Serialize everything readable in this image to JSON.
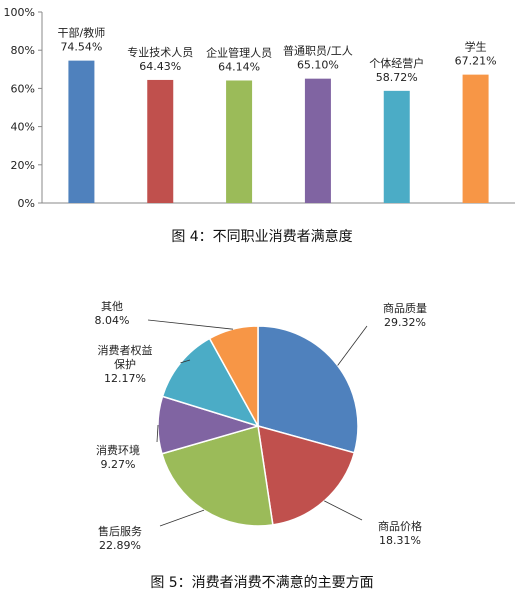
{
  "chart_data": [
    {
      "type": "bar",
      "categories": [
        "干部/教师",
        "专业技术人员",
        "企业管理人员",
        "普通职员/工人",
        "个体经营户",
        "学生"
      ],
      "values": [
        74.54,
        64.43,
        64.14,
        65.1,
        58.72,
        67.21
      ],
      "value_labels": [
        "74.54%",
        "64.43%",
        "64.14%",
        "65.10%",
        "58.72%",
        "67.21%"
      ],
      "colors": [
        "#4f81bd",
        "#c0504d",
        "#9bbb59",
        "#8064a2",
        "#4bacc6",
        "#f79646"
      ],
      "ylim": [
        0,
        100
      ],
      "yticks": [
        0,
        20,
        40,
        60,
        80,
        100
      ],
      "ytick_labels": [
        "0%",
        "20%",
        "40%",
        "60%",
        "80%",
        "100%"
      ],
      "caption": "图 4：不同职业消费者满意度"
    },
    {
      "type": "pie",
      "labels": [
        "商品质量",
        "商品价格",
        "售后服务",
        "消费环境",
        "消费者权益保护",
        "其他"
      ],
      "display_labels": [
        [
          "商品质量"
        ],
        [
          "商品价格"
        ],
        [
          "售后服务"
        ],
        [
          "消费环境"
        ],
        [
          "消费者权益",
          "保护"
        ],
        [
          "其他"
        ]
      ],
      "values": [
        29.32,
        18.31,
        22.89,
        9.27,
        12.17,
        8.04
      ],
      "value_labels": [
        "29.32%",
        "18.31%",
        "22.89%",
        "9.27%",
        "12.17%",
        "8.04%"
      ],
      "colors": [
        "#4f81bd",
        "#c0504d",
        "#9bbb59",
        "#8064a2",
        "#4bacc6",
        "#f79646"
      ],
      "caption": "图 5：消费者消费不满意的主要方面"
    }
  ]
}
